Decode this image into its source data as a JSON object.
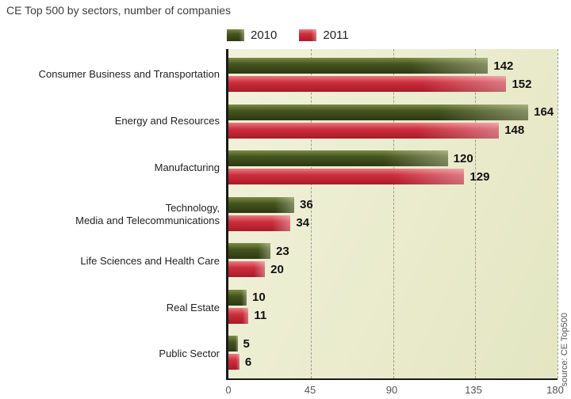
{
  "title": "CE Top 500 by sectors, number of companies",
  "source": "source: CE Top500",
  "chart_data": {
    "type": "bar",
    "orientation": "horizontal",
    "title": "CE Top 500 by sectors, number of companies",
    "categories": [
      "Consumer Business and Transportation",
      "Energy and Resources",
      "Manufacturing",
      "Technology,\nMedia and Telecommunications",
      "Life Sciences and Health Care",
      "Real Estate",
      "Public Sector"
    ],
    "series": [
      {
        "name": "2010",
        "color": "#45541f",
        "values": [
          142,
          164,
          120,
          36,
          23,
          10,
          5
        ]
      },
      {
        "name": "2011",
        "color": "#cc2f3e",
        "values": [
          152,
          148,
          129,
          34,
          20,
          11,
          6
        ]
      }
    ],
    "xlim": [
      0,
      180
    ],
    "xticks": [
      0,
      45,
      90,
      135,
      180
    ],
    "grid": "vertical-dashed",
    "legend_position": "top"
  }
}
